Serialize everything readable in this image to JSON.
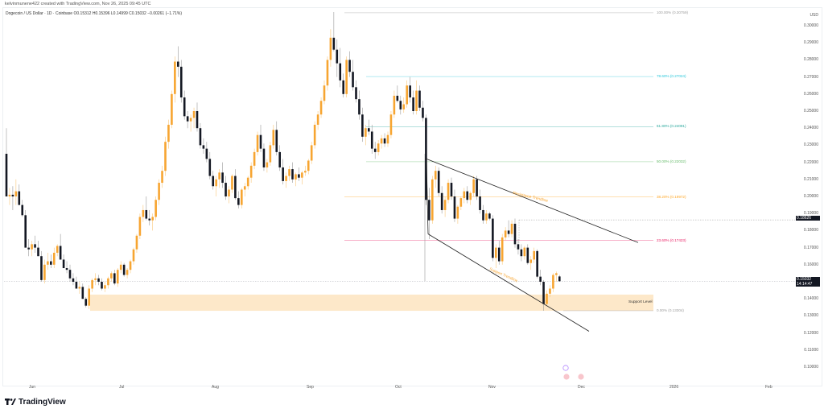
{
  "header": {
    "credit": "kelvinmunene422 created with TradingView.com, Nov 26, 2025 09:45 UTC",
    "symbol_line": "Dogecoin / US Dollar · 1D · Coinbase  O0.15312  H0.15396  L0.14999  C0.15032  −0.00261 (−1.71%)"
  },
  "axis": {
    "currency": "USD",
    "ticks": [
      "0.30000",
      "0.29000",
      "0.28000",
      "0.27000",
      "0.26000",
      "0.25000",
      "0.24000",
      "0.23000",
      "0.22000",
      "0.21000",
      "0.20000",
      "0.19000",
      "0.18000",
      "0.17000",
      "0.16000",
      "0.14000",
      "0.13000",
      "0.12000",
      "0.11000",
      "0.10000"
    ],
    "marker_level": "0.18626",
    "current_price": "0.15032",
    "countdown": "14:14:47"
  },
  "xaxis": {
    "labels": [
      "Jun",
      "Jul",
      "Aug",
      "Sep",
      "Oct",
      "Nov",
      "Dec",
      "2026",
      "Feb"
    ]
  },
  "fib": [
    {
      "label": "100.00% (0.30759)",
      "color": "#9e9e9e"
    },
    {
      "label": "78.60% (0.27024)",
      "color": "#26c6da"
    },
    {
      "label": "61.80% (0.24091)",
      "color": "#26a69a"
    },
    {
      "label": "50.00% (0.22032)",
      "color": "#66bb6a"
    },
    {
      "label": "38.20% (0.19972)",
      "color": "#ffa726"
    },
    {
      "label": "23.60% (0.17423)",
      "color": "#e91e63"
    },
    {
      "label": "0.00% (0.13304)",
      "color": "#9e9e9e"
    }
  ],
  "annotations": {
    "resistance": "Resistance Trendline",
    "support_tl": "Support Trendline",
    "support_level": "Support Level"
  },
  "colors": {
    "up": "#f7a531",
    "down": "#131722",
    "zone": "#fde8c9"
  },
  "footer": {
    "brand": "TradingView"
  },
  "chart_data": {
    "type": "candlestick",
    "title": "Dogecoin / US Dollar · 1D · Coinbase",
    "ylabel": "USD",
    "ylim": [
      0.095,
      0.31
    ],
    "x_ticks": [
      "Jun",
      "Jul",
      "Aug",
      "Sep",
      "Oct",
      "Nov",
      "Dec",
      "2026",
      "Feb"
    ],
    "ohlc_last": {
      "open": 0.15312,
      "high": 0.15396,
      "low": 0.14999,
      "close": 0.15032,
      "change": -0.00261,
      "change_pct": -1.71
    },
    "fib_retracement": [
      {
        "level": 1.0,
        "price": 0.30759
      },
      {
        "level": 0.786,
        "price": 0.27024
      },
      {
        "level": 0.618,
        "price": 0.24091
      },
      {
        "level": 0.5,
        "price": 0.22032
      },
      {
        "level": 0.382,
        "price": 0.19972
      },
      {
        "level": 0.236,
        "price": 0.17423
      },
      {
        "level": 0.0,
        "price": 0.13304
      }
    ],
    "support_zone": [
      0.133,
      0.142
    ],
    "horizontal_marker": 0.18626,
    "trendlines": [
      "Resistance Trendline (descending from ~0.222 early Oct to ~0.173 mid Dec)",
      "Support Trendline (descending from ~0.178 early Oct to ~0.12 early Dec)"
    ],
    "approx_closes_monthly": {
      "Jun_start": 0.225,
      "Jun_low": 0.145,
      "Jul_peak": 0.28,
      "Aug": 0.22,
      "Sep_peak": 0.3,
      "Oct_start": 0.25,
      "Oct_crash": 0.19,
      "Nov": 0.17,
      "Nov_low": 0.135,
      "last": 0.15032
    }
  }
}
